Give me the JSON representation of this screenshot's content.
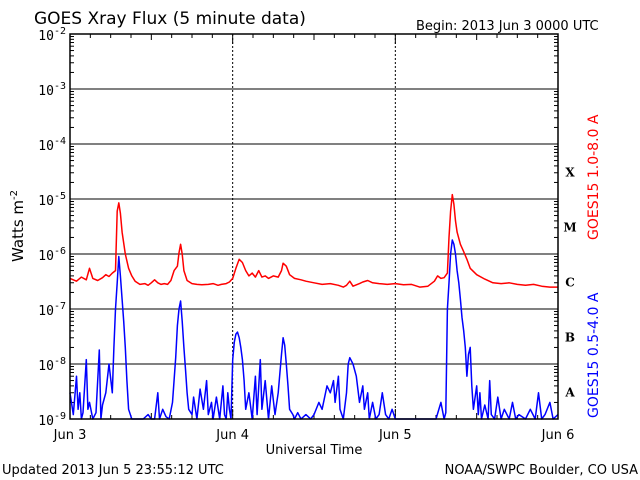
{
  "chart_data": {
    "type": "line",
    "title": "GOES Xray Flux (5 minute data)",
    "begin_text": "Begin:  2013 Jun 3 0000 UTC",
    "xlabel": "Universal Time",
    "ylabel_main": "Watts m",
    "ylabel_exp": "-2",
    "y_scale": "log",
    "ylim": [
      1e-09,
      0.01
    ],
    "xlim_days": [
      0,
      3
    ],
    "x_tick_labels": [
      "Jun 3",
      "Jun 4",
      "Jun 5",
      "Jun 6"
    ],
    "y_tick_labels": [
      {
        "base": "10",
        "exp": "-2"
      },
      {
        "base": "10",
        "exp": "-3"
      },
      {
        "base": "10",
        "exp": "-4"
      },
      {
        "base": "10",
        "exp": "-5"
      },
      {
        "base": "10",
        "exp": "-6"
      },
      {
        "base": "10",
        "exp": "-7"
      },
      {
        "base": "10",
        "exp": "-8"
      },
      {
        "base": "10",
        "exp": "-9"
      }
    ],
    "flare_classes": [
      "X",
      "M",
      "C",
      "B",
      "A"
    ],
    "grid": true,
    "series": [
      {
        "name": "GOES15 1.0-8.0 A",
        "color": "#ff0000",
        "points": [
          [
            0.0,
            3.6e-07
          ],
          [
            0.04,
            3.2e-07
          ],
          [
            0.07,
            3.8e-07
          ],
          [
            0.1,
            3.4e-07
          ],
          [
            0.12,
            5.5e-07
          ],
          [
            0.14,
            3.6e-07
          ],
          [
            0.17,
            3.3e-07
          ],
          [
            0.2,
            3.7e-07
          ],
          [
            0.22,
            4.2e-07
          ],
          [
            0.24,
            3.9e-07
          ],
          [
            0.26,
            4.5e-07
          ],
          [
            0.28,
            5e-07
          ],
          [
            0.29,
            6e-06
          ],
          [
            0.3,
            8.5e-06
          ],
          [
            0.31,
            5.5e-06
          ],
          [
            0.32,
            2.5e-06
          ],
          [
            0.34,
            1e-06
          ],
          [
            0.36,
            5.5e-07
          ],
          [
            0.38,
            4e-07
          ],
          [
            0.4,
            3.2e-07
          ],
          [
            0.43,
            2.8e-07
          ],
          [
            0.46,
            2.9e-07
          ],
          [
            0.48,
            2.7e-07
          ],
          [
            0.5,
            3e-07
          ],
          [
            0.52,
            3.4e-07
          ],
          [
            0.54,
            3e-07
          ],
          [
            0.56,
            2.8e-07
          ],
          [
            0.58,
            2.9e-07
          ],
          [
            0.6,
            2.8e-07
          ],
          [
            0.62,
            3.3e-07
          ],
          [
            0.64,
            5e-07
          ],
          [
            0.66,
            6e-07
          ],
          [
            0.67,
            1.05e-06
          ],
          [
            0.68,
            1.5e-06
          ],
          [
            0.69,
            1e-06
          ],
          [
            0.7,
            5e-07
          ],
          [
            0.72,
            3.3e-07
          ],
          [
            0.75,
            2.9e-07
          ],
          [
            0.78,
            2.8e-07
          ],
          [
            0.81,
            2.75e-07
          ],
          [
            0.85,
            2.8e-07
          ],
          [
            0.88,
            2.9e-07
          ],
          [
            0.91,
            2.7e-07
          ],
          [
            0.93,
            2.8e-07
          ],
          [
            0.96,
            2.9e-07
          ],
          [
            0.98,
            3.1e-07
          ],
          [
            1.0,
            3.6e-07
          ],
          [
            1.02,
            5.5e-07
          ],
          [
            1.04,
            8e-07
          ],
          [
            1.06,
            7e-07
          ],
          [
            1.08,
            5e-07
          ],
          [
            1.1,
            4e-07
          ],
          [
            1.12,
            4.5e-07
          ],
          [
            1.14,
            3.8e-07
          ],
          [
            1.16,
            5e-07
          ],
          [
            1.18,
            3.8e-07
          ],
          [
            1.2,
            4e-07
          ],
          [
            1.22,
            3.6e-07
          ],
          [
            1.25,
            4e-07
          ],
          [
            1.28,
            3.8e-07
          ],
          [
            1.3,
            5e-07
          ],
          [
            1.31,
            6.8e-07
          ],
          [
            1.33,
            6e-07
          ],
          [
            1.35,
            4.2e-07
          ],
          [
            1.38,
            3.6e-07
          ],
          [
            1.42,
            3.4e-07
          ],
          [
            1.45,
            3.2e-07
          ],
          [
            1.5,
            3e-07
          ],
          [
            1.55,
            2.8e-07
          ],
          [
            1.6,
            2.9e-07
          ],
          [
            1.65,
            2.7e-07
          ],
          [
            1.68,
            2.5e-07
          ],
          [
            1.7,
            2.7e-07
          ],
          [
            1.72,
            3.2e-07
          ],
          [
            1.74,
            2.6e-07
          ],
          [
            1.78,
            2.9e-07
          ],
          [
            1.8,
            3.1e-07
          ],
          [
            1.83,
            3.3e-07
          ],
          [
            1.86,
            3e-07
          ],
          [
            1.9,
            2.9e-07
          ],
          [
            1.95,
            2.8e-07
          ],
          [
            2.0,
            2.9e-07
          ],
          [
            2.05,
            2.75e-07
          ],
          [
            2.1,
            2.8e-07
          ],
          [
            2.15,
            2.5e-07
          ],
          [
            2.2,
            2.6e-07
          ],
          [
            2.24,
            3.2e-07
          ],
          [
            2.26,
            4e-07
          ],
          [
            2.28,
            3.6e-07
          ],
          [
            2.3,
            3.7e-07
          ],
          [
            2.32,
            4.5e-07
          ],
          [
            2.33,
            2e-06
          ],
          [
            2.34,
            6e-06
          ],
          [
            2.35,
            1.2e-05
          ],
          [
            2.36,
            8e-06
          ],
          [
            2.37,
            4e-06
          ],
          [
            2.38,
            2.5e-06
          ],
          [
            2.4,
            1.5e-06
          ],
          [
            2.42,
            1.1e-06
          ],
          [
            2.44,
            8e-07
          ],
          [
            2.46,
            5.5e-07
          ],
          [
            2.5,
            4.2e-07
          ],
          [
            2.55,
            3.5e-07
          ],
          [
            2.6,
            3e-07
          ],
          [
            2.65,
            2.9e-07
          ],
          [
            2.7,
            3e-07
          ],
          [
            2.75,
            2.8e-07
          ],
          [
            2.8,
            2.7e-07
          ],
          [
            2.85,
            2.8e-07
          ],
          [
            2.9,
            2.6e-07
          ],
          [
            2.95,
            2.5e-07
          ],
          [
            3.0,
            2.5e-07
          ]
        ]
      },
      {
        "name": "GOES15 0.5-4.0 A",
        "color": "#0000ff",
        "points": [
          [
            0.0,
            3e-09
          ],
          [
            0.02,
            1.2e-09
          ],
          [
            0.04,
            6e-09
          ],
          [
            0.05,
            1.5e-09
          ],
          [
            0.06,
            3e-09
          ],
          [
            0.07,
            1e-09
          ],
          [
            0.08,
            1.3e-09
          ],
          [
            0.1,
            1.2e-08
          ],
          [
            0.11,
            1.5e-09
          ],
          [
            0.12,
            2e-09
          ],
          [
            0.14,
            1e-09
          ],
          [
            0.16,
            1.3e-09
          ],
          [
            0.18,
            1.8e-08
          ],
          [
            0.19,
            1e-09
          ],
          [
            0.2,
            1.8e-09
          ],
          [
            0.22,
            3e-09
          ],
          [
            0.24,
            1e-08
          ],
          [
            0.26,
            3e-09
          ],
          [
            0.27,
            2e-08
          ],
          [
            0.28,
            1e-07
          ],
          [
            0.29,
            3e-07
          ],
          [
            0.3,
            9e-07
          ],
          [
            0.31,
            4e-07
          ],
          [
            0.32,
            1.5e-07
          ],
          [
            0.33,
            6e-08
          ],
          [
            0.34,
            2e-08
          ],
          [
            0.35,
            5e-09
          ],
          [
            0.36,
            1.5e-09
          ],
          [
            0.38,
            1e-09
          ],
          [
            0.42,
            1e-09
          ],
          [
            0.45,
            1e-09
          ],
          [
            0.48,
            1.2e-09
          ],
          [
            0.5,
            1e-09
          ],
          [
            0.52,
            1e-09
          ],
          [
            0.54,
            3e-09
          ],
          [
            0.55,
            1e-09
          ],
          [
            0.57,
            1.5e-09
          ],
          [
            0.59,
            1.1e-09
          ],
          [
            0.61,
            1e-09
          ],
          [
            0.63,
            2e-09
          ],
          [
            0.65,
            1.3e-08
          ],
          [
            0.66,
            5e-08
          ],
          [
            0.67,
            1e-07
          ],
          [
            0.68,
            1.4e-07
          ],
          [
            0.69,
            6e-08
          ],
          [
            0.7,
            2e-08
          ],
          [
            0.71,
            8e-09
          ],
          [
            0.72,
            3e-09
          ],
          [
            0.73,
            1.5e-09
          ],
          [
            0.75,
            1.2e-09
          ],
          [
            0.76,
            2.5e-09
          ],
          [
            0.78,
            1e-09
          ],
          [
            0.8,
            3.5e-09
          ],
          [
            0.82,
            1.5e-09
          ],
          [
            0.84,
            5e-09
          ],
          [
            0.85,
            1.2e-09
          ],
          [
            0.87,
            2e-09
          ],
          [
            0.88,
            1e-09
          ],
          [
            0.9,
            2.5e-09
          ],
          [
            0.92,
            1e-09
          ],
          [
            0.94,
            4e-09
          ],
          [
            0.95,
            1.2e-09
          ],
          [
            0.96,
            1e-09
          ],
          [
            0.97,
            3e-09
          ],
          [
            0.98,
            1.5e-09
          ],
          [
            0.99,
            1e-09
          ],
          [
            1.0,
            1.2e-08
          ],
          [
            1.01,
            2.5e-08
          ],
          [
            1.02,
            3.5e-08
          ],
          [
            1.03,
            3.8e-08
          ],
          [
            1.04,
            3e-08
          ],
          [
            1.05,
            2e-08
          ],
          [
            1.06,
            1.2e-08
          ],
          [
            1.07,
            5e-09
          ],
          [
            1.08,
            1.5e-09
          ],
          [
            1.1,
            3e-09
          ],
          [
            1.12,
            1e-09
          ],
          [
            1.14,
            6e-09
          ],
          [
            1.15,
            1.2e-09
          ],
          [
            1.17,
            1.2e-08
          ],
          [
            1.18,
            1.5e-09
          ],
          [
            1.2,
            5e-09
          ],
          [
            1.22,
            1e-09
          ],
          [
            1.24,
            4e-09
          ],
          [
            1.26,
            1.2e-09
          ],
          [
            1.28,
            3e-09
          ],
          [
            1.3,
            1.5e-08
          ],
          [
            1.31,
            3e-08
          ],
          [
            1.32,
            2.2e-08
          ],
          [
            1.33,
            1e-08
          ],
          [
            1.34,
            4e-09
          ],
          [
            1.35,
            1.5e-09
          ],
          [
            1.37,
            1.2e-09
          ],
          [
            1.38,
            1e-09
          ],
          [
            1.4,
            1.3e-09
          ],
          [
            1.42,
            1e-09
          ],
          [
            1.45,
            1.2e-09
          ],
          [
            1.48,
            1e-09
          ],
          [
            1.5,
            1.2e-09
          ],
          [
            1.53,
            2e-09
          ],
          [
            1.55,
            1.5e-09
          ],
          [
            1.58,
            4e-09
          ],
          [
            1.6,
            3e-09
          ],
          [
            1.62,
            5e-09
          ],
          [
            1.63,
            2e-09
          ],
          [
            1.65,
            6e-09
          ],
          [
            1.66,
            1.5e-09
          ],
          [
            1.68,
            1e-09
          ],
          [
            1.7,
            3e-09
          ],
          [
            1.71,
            1e-08
          ],
          [
            1.72,
            1.3e-08
          ],
          [
            1.74,
            1e-08
          ],
          [
            1.76,
            6e-09
          ],
          [
            1.78,
            2e-09
          ],
          [
            1.8,
            4e-09
          ],
          [
            1.81,
            1.5e-09
          ],
          [
            1.83,
            3e-09
          ],
          [
            1.84,
            1e-09
          ],
          [
            1.86,
            2e-09
          ],
          [
            1.88,
            1e-09
          ],
          [
            1.9,
            1.2e-09
          ],
          [
            1.92,
            3e-09
          ],
          [
            1.94,
            1.2e-09
          ],
          [
            1.96,
            1e-09
          ],
          [
            1.98,
            1.5e-09
          ],
          [
            2.0,
            1e-09
          ],
          [
            2.05,
            1e-09
          ],
          [
            2.1,
            1e-09
          ],
          [
            2.15,
            1e-09
          ],
          [
            2.2,
            1e-09
          ],
          [
            2.25,
            1e-09
          ],
          [
            2.28,
            2e-09
          ],
          [
            2.3,
            1e-09
          ],
          [
            2.31,
            1.3e-09
          ],
          [
            2.32,
            1e-07
          ],
          [
            2.33,
            3e-07
          ],
          [
            2.34,
            1e-06
          ],
          [
            2.35,
            1.8e-06
          ],
          [
            2.36,
            1.5e-06
          ],
          [
            2.37,
            1e-06
          ],
          [
            2.38,
            5e-07
          ],
          [
            2.39,
            3e-07
          ],
          [
            2.4,
            1.5e-07
          ],
          [
            2.41,
            7e-08
          ],
          [
            2.42,
            4e-08
          ],
          [
            2.43,
            2e-08
          ],
          [
            2.44,
            6e-09
          ],
          [
            2.45,
            1.5e-08
          ],
          [
            2.46,
            2e-08
          ],
          [
            2.47,
            4e-09
          ],
          [
            2.48,
            1.5e-09
          ],
          [
            2.5,
            4e-09
          ],
          [
            2.51,
            1.2e-09
          ],
          [
            2.52,
            3e-09
          ],
          [
            2.53,
            1e-09
          ],
          [
            2.55,
            1.8e-09
          ],
          [
            2.57,
            1e-09
          ],
          [
            2.58,
            5e-09
          ],
          [
            2.59,
            1.2e-09
          ],
          [
            2.61,
            1e-09
          ],
          [
            2.63,
            2.5e-09
          ],
          [
            2.65,
            1e-09
          ],
          [
            2.67,
            1.5e-09
          ],
          [
            2.7,
            1e-09
          ],
          [
            2.72,
            2e-09
          ],
          [
            2.74,
            1e-09
          ],
          [
            2.76,
            1.2e-09
          ],
          [
            2.8,
            1e-09
          ],
          [
            2.83,
            1.5e-09
          ],
          [
            2.86,
            1e-09
          ],
          [
            2.88,
            3e-09
          ],
          [
            2.9,
            1e-09
          ],
          [
            2.92,
            1.2e-09
          ],
          [
            2.95,
            2e-09
          ],
          [
            2.97,
            1e-09
          ],
          [
            3.0,
            1.2e-09
          ]
        ]
      }
    ]
  },
  "footer": {
    "updated": "Updated 2013 Jun  5 23:55:12 UTC",
    "credit": "NOAA/SWPC Boulder, CO USA"
  }
}
